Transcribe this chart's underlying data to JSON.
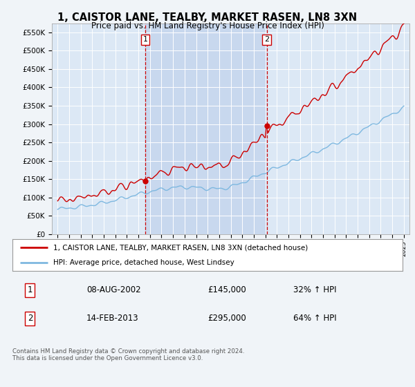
{
  "title": "1, CAISTOR LANE, TEALBY, MARKET RASEN, LN8 3XN",
  "subtitle": "Price paid vs. HM Land Registry's House Price Index (HPI)",
  "background_color": "#f0f4f8",
  "plot_bg_color": "#dce8f5",
  "plot_highlight_color": "#c8d8ee",
  "ylim": [
    0,
    575000
  ],
  "yticks": [
    0,
    50000,
    100000,
    150000,
    200000,
    250000,
    300000,
    350000,
    400000,
    450000,
    500000,
    550000
  ],
  "ytick_labels": [
    "£0",
    "£50K",
    "£100K",
    "£150K",
    "£200K",
    "£250K",
    "£300K",
    "£350K",
    "£400K",
    "£450K",
    "£500K",
    "£550K"
  ],
  "sale1_year": 2002.6,
  "sale1_price": 145000,
  "sale2_year": 2013.12,
  "sale2_price": 295000,
  "legend_line1": "1, CAISTOR LANE, TEALBY, MARKET RASEN, LN8 3XN (detached house)",
  "legend_line2": "HPI: Average price, detached house, West Lindsey",
  "table_row1": [
    "1",
    "08-AUG-2002",
    "£145,000",
    "32% ↑ HPI"
  ],
  "table_row2": [
    "2",
    "14-FEB-2013",
    "£295,000",
    "64% ↑ HPI"
  ],
  "footer": "Contains HM Land Registry data © Crown copyright and database right 2024.\nThis data is licensed under the Open Government Licence v3.0.",
  "hpi_line_color": "#7eb8e0",
  "price_line_color": "#cc0000",
  "dashed_line_color": "#cc0000",
  "xmin": 1994.5,
  "xmax": 2025.5
}
